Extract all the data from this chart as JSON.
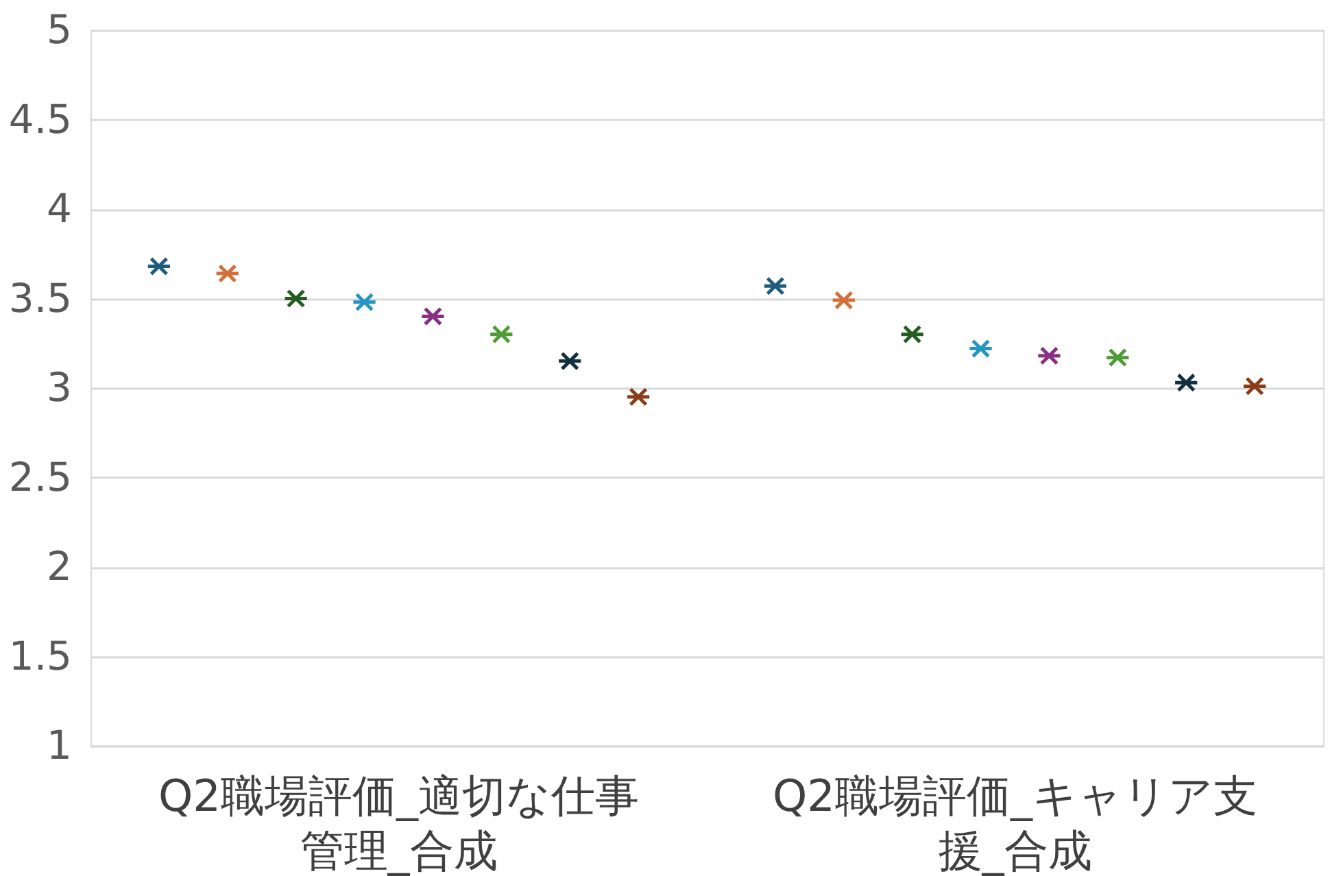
{
  "chart_data": {
    "type": "scatter",
    "categories": [
      "Q2職場評価_適切な仕事管理_合成",
      "Q2職場評価_キャリア支援_合成"
    ],
    "series": [
      {
        "color": "#1f5c7e",
        "values": [
          3.68,
          3.57
        ]
      },
      {
        "color": "#d0703a",
        "values": [
          3.64,
          3.49
        ]
      },
      {
        "color": "#245d22",
        "values": [
          3.5,
          3.3
        ]
      },
      {
        "color": "#2595c4",
        "values": [
          3.48,
          3.22
        ]
      },
      {
        "color": "#8a2e84",
        "values": [
          3.4,
          3.18
        ]
      },
      {
        "color": "#4e9a34",
        "values": [
          3.3,
          3.17
        ]
      },
      {
        "color": "#13303f",
        "values": [
          3.15,
          3.03
        ]
      },
      {
        "color": "#8a3d16",
        "values": [
          2.95,
          3.01
        ]
      }
    ],
    "ylim": [
      1,
      5
    ],
    "yticks": [
      1,
      1.5,
      2,
      2.5,
      3,
      3.5,
      4,
      4.5,
      5
    ],
    "grid": "y",
    "legend": false,
    "marker": "cross"
  }
}
